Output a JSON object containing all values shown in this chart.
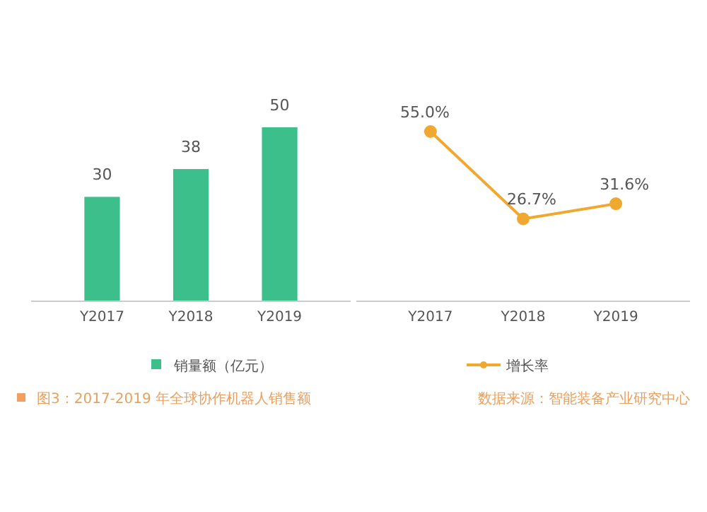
{
  "chart_data": [
    {
      "type": "bar",
      "categories": [
        "Y2017",
        "Y2018",
        "Y2019"
      ],
      "series": [
        {
          "name": "销量额（亿元）",
          "color": "#3dbf8c",
          "values": [
            30,
            38,
            50
          ]
        }
      ],
      "data_labels": true,
      "legend": "bottom",
      "annotations": [
        "图3：2017-2019 年全球协作机器人销售额"
      ]
    },
    {
      "type": "line",
      "categories": [
        "Y2017",
        "Y2018",
        "Y2019"
      ],
      "series": [
        {
          "name": "增长率",
          "color": "#f0a830",
          "values": [
            55.0,
            26.7,
            31.6
          ],
          "value_labels": [
            "55.0%",
            "26.7%",
            "31.6%"
          ]
        }
      ],
      "marker": "circle",
      "legend": "bottom",
      "annotations": [
        "数据来源：智能装备产业研究中心"
      ]
    }
  ]
}
